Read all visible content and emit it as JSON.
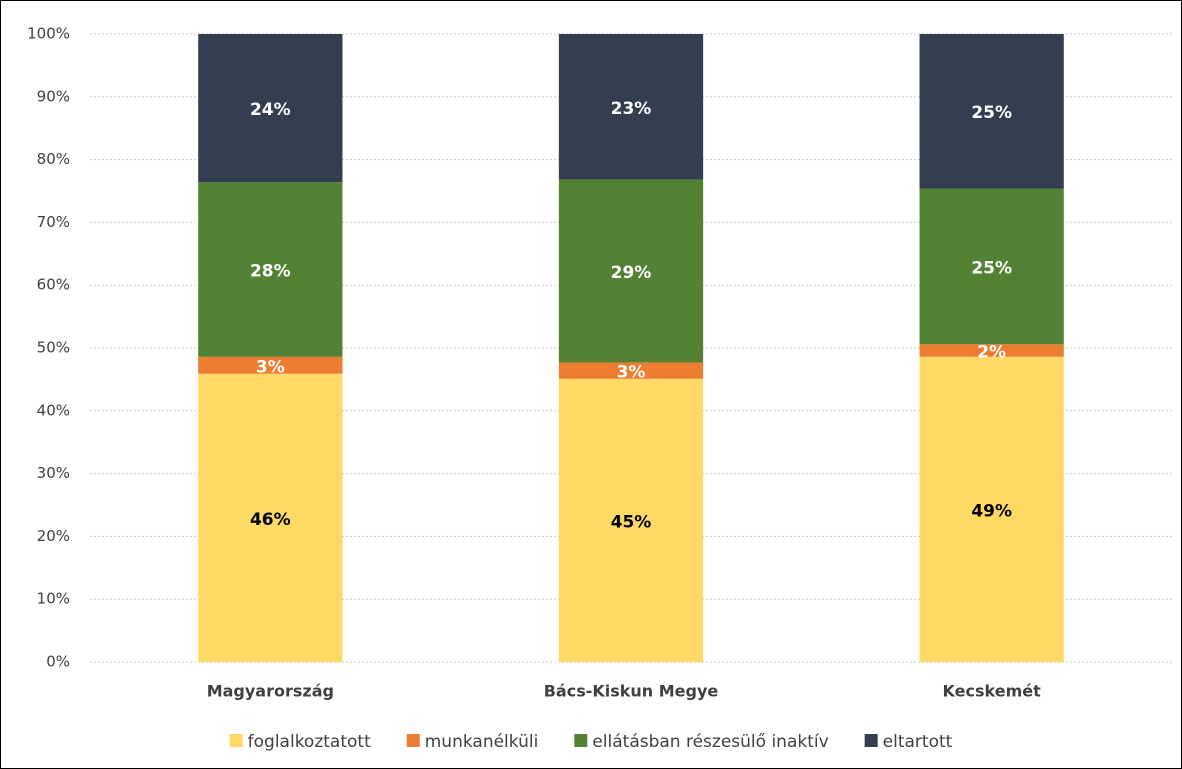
{
  "chart_data": {
    "type": "stacked_bar",
    "categories": [
      "Magyarország",
      "Bács-Kiskun Megye",
      "Kecskemét"
    ],
    "series": [
      {
        "name": "foglalkoztatott",
        "color": "#ffd966",
        "label_color": "#000000",
        "values": [
          45.9,
          45.1,
          48.6
        ],
        "value_labels": [
          "46%",
          "45%",
          "49%"
        ]
      },
      {
        "name": "munkanélküli",
        "color": "#ed7d31",
        "label_color": "#ffffff",
        "values": [
          2.7,
          2.6,
          2.0
        ],
        "value_labels": [
          "3%",
          "3%",
          "2%"
        ]
      },
      {
        "name": "ellátásban részesülő inaktív",
        "color": "#548235",
        "label_color": "#ffffff",
        "values": [
          27.8,
          29.1,
          24.8
        ],
        "value_labels": [
          "28%",
          "29%",
          "25%"
        ]
      },
      {
        "name": "eltartott",
        "color": "#333f50",
        "label_color": "#ffffff",
        "values": [
          23.6,
          23.2,
          24.6
        ],
        "value_labels": [
          "24%",
          "23%",
          "25%"
        ]
      }
    ],
    "ylim": [
      0,
      100
    ],
    "yticks": [
      {
        "value": 0,
        "label": "0%"
      },
      {
        "value": 10,
        "label": "10%"
      },
      {
        "value": 20,
        "label": "20%"
      },
      {
        "value": 30,
        "label": "30%"
      },
      {
        "value": 40,
        "label": "40%"
      },
      {
        "value": 50,
        "label": "50%"
      },
      {
        "value": 60,
        "label": "60%"
      },
      {
        "value": 70,
        "label": "70%"
      },
      {
        "value": 80,
        "label": "80%"
      },
      {
        "value": 90,
        "label": "90%"
      },
      {
        "value": 100,
        "label": "100%"
      }
    ],
    "grid": true,
    "legend": "bottom"
  }
}
